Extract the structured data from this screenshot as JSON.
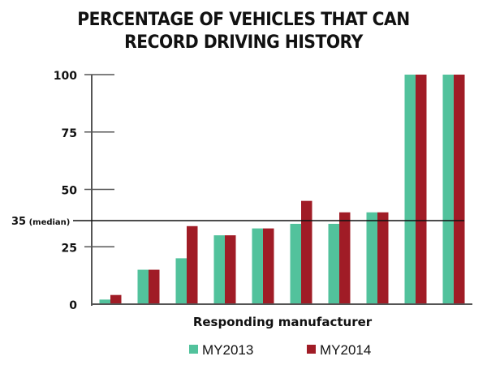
{
  "chart_data": {
    "type": "bar",
    "title": [
      "PERCENTAGE OF VEHICLES THAT CAN",
      "RECORD DRIVING HISTORY"
    ],
    "xlabel": "Responding manufacturer",
    "ylabel": "",
    "ylim": [
      0,
      100
    ],
    "yticks": [
      0,
      25,
      50,
      75,
      100
    ],
    "ytick_labels": [
      "0",
      "25",
      "50",
      "75",
      "100"
    ],
    "reference_line": {
      "value": 35,
      "label": "35",
      "label_suffix": "(median)"
    },
    "categories": [
      "",
      "",
      "",
      "",
      "",
      "",
      "",
      "",
      "",
      ""
    ],
    "series": [
      {
        "name": "MY2013",
        "color": "#52c29c",
        "values": [
          2,
          15,
          20,
          30,
          33,
          35,
          35,
          40,
          100,
          100
        ]
      },
      {
        "name": "MY2014",
        "color": "#a01c26",
        "values": [
          4,
          15,
          34,
          30,
          33,
          45,
          40,
          40,
          100,
          100
        ]
      }
    ],
    "grid": false,
    "legend_position": "bottom"
  }
}
